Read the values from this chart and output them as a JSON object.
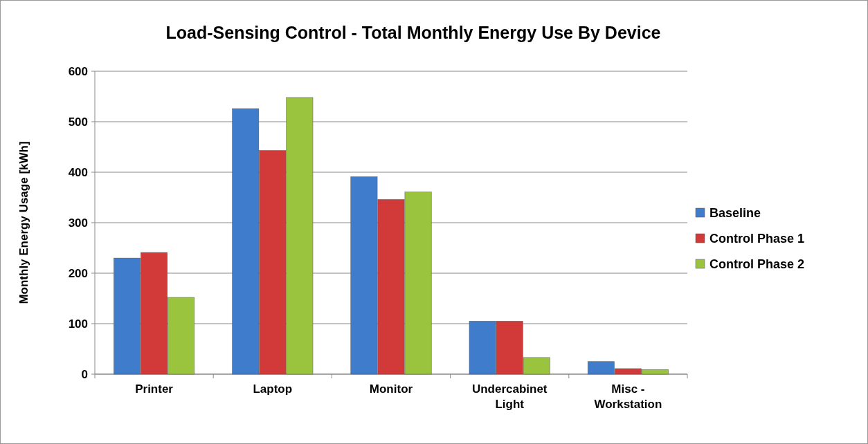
{
  "chart_data": {
    "type": "bar",
    "title": "Load-Sensing Control - Total Monthly Energy Use By Device",
    "ylabel": "Monthly Energy Usage [kWh]",
    "categories": [
      "Printer",
      "Laptop",
      "Monitor",
      "Undercabinet Light",
      "Misc - Workstation"
    ],
    "series": [
      {
        "name": "Baseline",
        "color": "#3f7ccc",
        "values": [
          230,
          526,
          391,
          105,
          25
        ]
      },
      {
        "name": "Control Phase 1",
        "color": "#d23a3a",
        "values": [
          241,
          443,
          346,
          105,
          11
        ]
      },
      {
        "name": "Control Phase 2",
        "color": "#9ac43e",
        "values": [
          152,
          548,
          361,
          33,
          9
        ]
      }
    ],
    "ylim": [
      0,
      600
    ],
    "yticks": [
      0,
      100,
      200,
      300,
      400,
      500,
      600
    ],
    "grid": "y",
    "legend": "right"
  }
}
